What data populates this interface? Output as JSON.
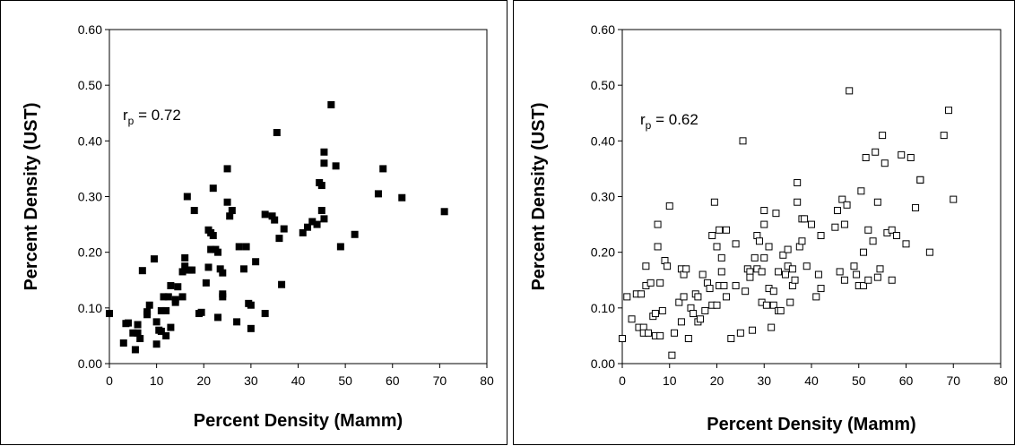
{
  "chart_data": [
    {
      "type": "scatter",
      "xlabel": "Percent Density (Mamm)",
      "ylabel": "Percent Density (UST)",
      "xlim": [
        0,
        80
      ],
      "ylim": [
        0,
        0.6
      ],
      "xticks": [
        "0",
        "10",
        "20",
        "30",
        "40",
        "50",
        "60",
        "70",
        "80"
      ],
      "yticks": [
        "0.00",
        "0.10",
        "0.20",
        "0.30",
        "0.40",
        "0.50",
        "0.60"
      ],
      "annotation": {
        "prefix": "r",
        "sub": "p",
        "text": " = 0.72"
      },
      "marker": "filled-square",
      "grid": false,
      "x": [
        0,
        3,
        3.5,
        4,
        5,
        5.5,
        6,
        6,
        6.5,
        7,
        8,
        8,
        8.5,
        9.5,
        10,
        10,
        10.5,
        11,
        11,
        11.5,
        12,
        12,
        12.5,
        13,
        13,
        14,
        14,
        14.5,
        15.5,
        15.5,
        16,
        16,
        16.5,
        17,
        17.5,
        18,
        19,
        19.5,
        20.5,
        21,
        21,
        21.5,
        21.5,
        22,
        22,
        22.5,
        23,
        23,
        23.5,
        24,
        24,
        24,
        25,
        25,
        25.5,
        26,
        27,
        27.5,
        28.5,
        29,
        29.5,
        30,
        30,
        31,
        33,
        33,
        34.5,
        35,
        35.5,
        36,
        36.5,
        37,
        41,
        42,
        43,
        44,
        44.5,
        45,
        45,
        45.5,
        45.5,
        45.5,
        47,
        48,
        49,
        52,
        57,
        58,
        62,
        71
      ],
      "y": [
        0.09,
        0.037,
        0.072,
        0.073,
        0.055,
        0.025,
        0.055,
        0.07,
        0.045,
        0.167,
        0.088,
        0.093,
        0.105,
        0.188,
        0.075,
        0.035,
        0.06,
        0.058,
        0.095,
        0.12,
        0.05,
        0.095,
        0.12,
        0.065,
        0.14,
        0.115,
        0.11,
        0.138,
        0.12,
        0.165,
        0.175,
        0.19,
        0.3,
        0.168,
        0.168,
        0.275,
        0.09,
        0.092,
        0.145,
        0.24,
        0.173,
        0.205,
        0.235,
        0.23,
        0.315,
        0.205,
        0.2,
        0.083,
        0.17,
        0.125,
        0.12,
        0.163,
        0.35,
        0.29,
        0.265,
        0.275,
        0.075,
        0.21,
        0.17,
        0.21,
        0.108,
        0.105,
        0.063,
        0.183,
        0.268,
        0.09,
        0.265,
        0.258,
        0.415,
        0.225,
        0.142,
        0.242,
        0.235,
        0.245,
        0.255,
        0.25,
        0.325,
        0.32,
        0.275,
        0.26,
        0.38,
        0.36,
        0.465,
        0.355,
        0.21,
        0.232,
        0.305,
        0.35,
        0.298,
        0.273
      ]
    },
    {
      "type": "scatter",
      "xlabel": "Percent Density (Mamm)",
      "ylabel": "Percent Density (UST)",
      "xlim": [
        0,
        80
      ],
      "ylim": [
        0,
        0.6
      ],
      "xticks": [
        "0",
        "10",
        "20",
        "30",
        "40",
        "50",
        "60",
        "70",
        "80"
      ],
      "yticks": [
        "0.00",
        "0.10",
        "0.20",
        "0.30",
        "0.40",
        "0.50",
        "0.60"
      ],
      "annotation": {
        "prefix": "r",
        "sub": "p",
        "text": " = 0.62"
      },
      "marker": "open-square",
      "grid": false,
      "x": [
        0,
        1,
        2,
        3,
        3.5,
        4,
        4.5,
        4.5,
        5,
        5,
        5.5,
        6,
        6.5,
        7,
        7,
        7.5,
        7.5,
        8,
        8,
        8.5,
        9,
        9.5,
        10,
        10.5,
        11,
        12,
        12.5,
        12.5,
        13,
        13,
        13.5,
        14,
        14.5,
        15,
        15.5,
        16,
        16,
        16.5,
        17,
        17.5,
        18,
        18.5,
        19,
        19,
        19.5,
        20,
        20,
        20.5,
        20.5,
        21,
        21,
        21.5,
        22,
        22,
        23,
        24,
        24,
        25,
        25.5,
        26,
        26.5,
        27,
        27,
        27.5,
        28,
        28.5,
        28.5,
        29,
        29.5,
        29.5,
        30,
        30,
        30,
        30.5,
        31,
        31,
        31.5,
        32,
        32,
        32.5,
        33,
        33,
        33.5,
        34,
        34.5,
        35,
        35,
        35.5,
        36,
        36,
        36.5,
        37,
        37,
        37.5,
        38,
        38,
        38.5,
        39,
        40,
        41,
        41.5,
        42,
        42,
        45,
        45.5,
        46,
        46.5,
        47,
        47,
        47.5,
        48,
        49,
        49.5,
        50,
        50.5,
        51,
        51,
        51.5,
        52,
        52,
        53,
        53.5,
        54,
        54,
        54.5,
        55,
        55.5,
        56,
        57,
        57,
        58,
        59,
        60,
        61,
        62,
        63,
        63,
        65,
        68,
        69,
        70
      ],
      "y": [
        0.045,
        0.12,
        0.08,
        0.125,
        0.065,
        0.125,
        0.065,
        0.055,
        0.14,
        0.175,
        0.055,
        0.145,
        0.085,
        0.05,
        0.09,
        0.21,
        0.25,
        0.145,
        0.05,
        0.095,
        0.185,
        0.175,
        0.283,
        0.015,
        0.055,
        0.11,
        0.17,
        0.075,
        0.12,
        0.16,
        0.17,
        0.045,
        0.1,
        0.09,
        0.125,
        0.12,
        0.075,
        0.08,
        0.16,
        0.095,
        0.145,
        0.135,
        0.105,
        0.23,
        0.29,
        0.105,
        0.21,
        0.14,
        0.24,
        0.19,
        0.165,
        0.14,
        0.24,
        0.12,
        0.045,
        0.14,
        0.215,
        0.055,
        0.4,
        0.13,
        0.17,
        0.165,
        0.155,
        0.06,
        0.19,
        0.23,
        0.17,
        0.22,
        0.11,
        0.165,
        0.25,
        0.275,
        0.19,
        0.105,
        0.135,
        0.21,
        0.065,
        0.105,
        0.13,
        0.27,
        0.095,
        0.165,
        0.095,
        0.195,
        0.16,
        0.175,
        0.205,
        0.11,
        0.17,
        0.14,
        0.15,
        0.29,
        0.325,
        0.21,
        0.22,
        0.26,
        0.26,
        0.175,
        0.25,
        0.12,
        0.16,
        0.135,
        0.23,
        0.245,
        0.275,
        0.165,
        0.295,
        0.25,
        0.15,
        0.285,
        0.49,
        0.175,
        0.16,
        0.14,
        0.31,
        0.2,
        0.14,
        0.37,
        0.24,
        0.15,
        0.22,
        0.38,
        0.29,
        0.155,
        0.17,
        0.41,
        0.36,
        0.235,
        0.15,
        0.24,
        0.23,
        0.375,
        0.215,
        0.37,
        0.28,
        0.33,
        0.33,
        0.2,
        0.41,
        0.455,
        0.295
      ]
    }
  ]
}
